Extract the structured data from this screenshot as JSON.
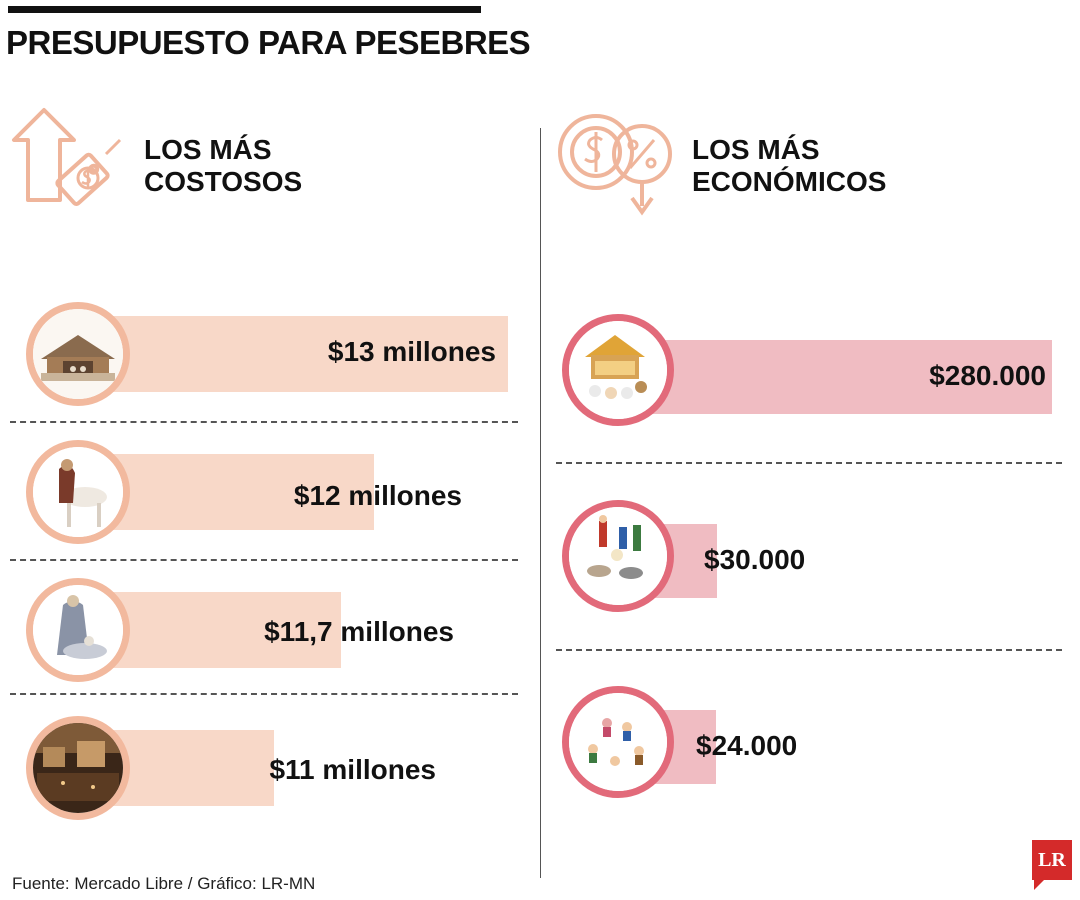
{
  "title": "PRESUPUESTO PARA PESEBRES",
  "left_heading": "LOS MÁS COSTOSOS",
  "right_heading": "LOS MÁS ECONÓMICOS",
  "source": "Fuente: Mercado Libre / Gráfico: LR-MN",
  "logo": "LR",
  "colors": {
    "costly_bar": "#f8d8c8",
    "costly_ring": "#f2b99e",
    "cheap_bar": "#f0bcc2",
    "cheap_ring": "#e26a7a",
    "heading_icon": "#efb59b"
  },
  "icons": {
    "costly": "price-up-icon",
    "cheap": "price-down-icon"
  },
  "chart_data": [
    {
      "type": "bar",
      "title": "LOS MÁS COSTOSOS",
      "unit": "COP",
      "categories": [
        "nativity-scene-1",
        "nativity-scene-2",
        "nativity-scene-3",
        "nativity-scene-4"
      ],
      "values": [
        13000000,
        12000000,
        11700000,
        11000000
      ],
      "labels": [
        "$13 millones",
        "$12 millones",
        "$11,7 millones",
        "$11 millones"
      ]
    },
    {
      "type": "bar",
      "title": "LOS MÁS ECONÓMICOS",
      "unit": "COP",
      "categories": [
        "nativity-scene-5",
        "nativity-scene-6",
        "nativity-scene-7"
      ],
      "values": [
        280000,
        30000,
        24000
      ],
      "labels": [
        "$280.000",
        "$30.000",
        "$24.000"
      ]
    }
  ]
}
